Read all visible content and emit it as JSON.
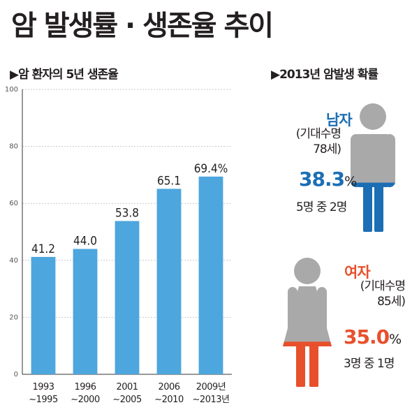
{
  "title": "암 발생률 · 생존율 추이",
  "left_section": {
    "title": "▶암 환자의 5년 생존율"
  },
  "right_section": {
    "title": "▶2013년 암발생 확률"
  },
  "chart_data": {
    "type": "bar",
    "title": "▶암 환자의 5년 생존율",
    "categories": [
      [
        "1993",
        "~1995"
      ],
      [
        "1996",
        "~2000"
      ],
      [
        "2001",
        "~2005"
      ],
      [
        "2006",
        "~2010"
      ],
      [
        "2009년",
        "~2013년"
      ]
    ],
    "values": [
      41.2,
      44.0,
      53.8,
      65.1,
      69.4
    ],
    "data_labels": [
      "41.2",
      "44.0",
      "53.8",
      "65.1",
      "69.4%"
    ],
    "ylim": [
      0,
      100
    ],
    "yticks": [
      0,
      20,
      40,
      60,
      80,
      100
    ],
    "grid": true,
    "bar_color": "#4da6dd"
  },
  "male": {
    "label": "남자",
    "lifespan_line1": "(기대수명",
    "lifespan_line2": "78세)",
    "rate_value": "38.3",
    "rate_unit": "%",
    "ratio": "5명 중 2명",
    "color": "#1b6eb4",
    "fill_fraction": 0.383
  },
  "female": {
    "label": "여자",
    "lifespan_line1": "(기대수명",
    "lifespan_line2": "85세)",
    "rate_value": "35.0",
    "rate_unit": "%",
    "ratio": "3명 중 1명",
    "color": "#e8502c",
    "fill_fraction": 0.35
  },
  "colors": {
    "figure_gray": "#a9a9a9",
    "male_accent": "#1b6eb4",
    "female_accent": "#e8502c"
  }
}
